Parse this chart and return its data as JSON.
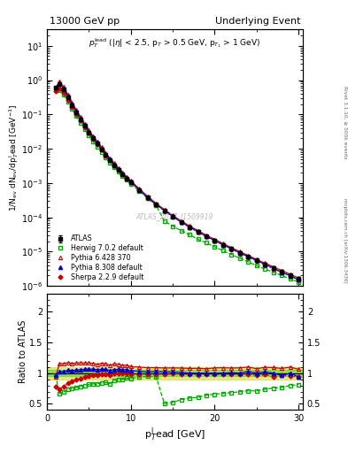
{
  "title_left": "13000 GeV pp",
  "title_right": "Underlying Event",
  "watermark": "ATLAS_2017_I1509919",
  "ylabel_ratio": "Ratio to ATLAS",
  "xlabel": "p$_T^{l}$ead [GeV]",
  "rivet_label": "Rivet 3.1.10, ≥ 500k events",
  "mcplots_label": "mcplots.cern.ch [arXiv:1306.3436]",
  "ylim_main": [
    1e-06,
    30
  ],
  "ylim_ratio": [
    0.4,
    2.3
  ],
  "xmin": 0,
  "xmax": 30.5,
  "band_inner_color": "#00cc00",
  "band_outer_color": "#cccc00",
  "band_inner_alpha": 0.35,
  "band_outer_alpha": 0.45,
  "band_inner": [
    0.95,
    1.05
  ],
  "band_outer": [
    0.9,
    1.1
  ],
  "atlas": {
    "x": [
      1.0,
      1.5,
      2.0,
      2.5,
      3.0,
      3.5,
      4.0,
      4.5,
      5.0,
      5.5,
      6.0,
      6.5,
      7.0,
      7.5,
      8.0,
      8.5,
      9.0,
      9.5,
      10.0,
      11.0,
      12.0,
      13.0,
      14.0,
      15.0,
      16.0,
      17.0,
      18.0,
      19.0,
      20.0,
      21.0,
      22.0,
      23.0,
      24.0,
      25.0,
      26.0,
      27.0,
      28.0,
      29.0,
      30.0
    ],
    "y": [
      0.62,
      0.78,
      0.55,
      0.32,
      0.19,
      0.115,
      0.072,
      0.046,
      0.03,
      0.02,
      0.014,
      0.0095,
      0.0065,
      0.0047,
      0.0033,
      0.0024,
      0.0018,
      0.00135,
      0.00105,
      0.00062,
      0.000375,
      0.000235,
      0.000155,
      0.000105,
      7.2e-05,
      5.2e-05,
      3.8e-05,
      2.8e-05,
      2.1e-05,
      1.58e-05,
      1.2e-05,
      9.2e-06,
      7e-06,
      5.5e-06,
      4.2e-06,
      3.3e-06,
      2.6e-06,
      2e-06,
      1.6e-06
    ],
    "yerr": [
      0.04,
      0.05,
      0.035,
      0.02,
      0.012,
      0.007,
      0.005,
      0.003,
      0.002,
      0.0014,
      0.001,
      0.0007,
      0.0005,
      0.00035,
      0.00025,
      0.00018,
      0.00013,
      0.0001,
      8e-05,
      5e-05,
      3e-05,
      2e-05,
      1.3e-05,
      9e-06,
      6e-06,
      5e-06,
      3.5e-06,
      2.7e-06,
      2e-06,
      1.6e-06,
      1.2e-06,
      9e-07,
      7e-07,
      6e-07,
      5e-07,
      4e-07,
      3.2e-07,
      2.5e-07,
      2e-07
    ],
    "color": "black",
    "label": "ATLAS"
  },
  "herwig": {
    "x": [
      1.0,
      1.5,
      2.0,
      2.5,
      3.0,
      3.5,
      4.0,
      4.5,
      5.0,
      5.5,
      6.0,
      6.5,
      7.0,
      7.5,
      8.0,
      8.5,
      9.0,
      9.5,
      10.0,
      11.0,
      12.0,
      13.0,
      14.0,
      15.0,
      16.0,
      17.0,
      18.0,
      19.0,
      20.0,
      21.0,
      22.0,
      23.0,
      24.0,
      25.0,
      26.0,
      27.0,
      28.0,
      29.0,
      30.0
    ],
    "y": [
      0.6,
      0.52,
      0.38,
      0.235,
      0.143,
      0.088,
      0.0565,
      0.0368,
      0.0245,
      0.0165,
      0.0116,
      0.008,
      0.0055,
      0.0039,
      0.0029,
      0.00215,
      0.00162,
      0.00124,
      0.00096,
      0.00058,
      0.000355,
      0.000222,
      7.8e-05,
      5.5e-05,
      4.1e-05,
      3.1e-05,
      2.3e-05,
      1.8e-05,
      1.38e-05,
      1.06e-05,
      8.2e-06,
      6.4e-06,
      5e-06,
      3.9e-06,
      3.1e-06,
      2.5e-06,
      2e-06,
      1.6e-06,
      1.3e-06
    ],
    "color": "#00aa00",
    "label": "Herwig 7.0.2 default"
  },
  "pythia6": {
    "x": [
      1.0,
      1.5,
      2.0,
      2.5,
      3.0,
      3.5,
      4.0,
      4.5,
      5.0,
      5.5,
      6.0,
      6.5,
      7.0,
      7.5,
      8.0,
      8.5,
      9.0,
      9.5,
      10.0,
      11.0,
      12.0,
      13.0,
      14.0,
      15.0,
      16.0,
      17.0,
      18.0,
      19.0,
      20.0,
      21.0,
      22.0,
      23.0,
      24.0,
      25.0,
      26.0,
      27.0,
      28.0,
      29.0,
      30.0
    ],
    "y": [
      0.58,
      0.9,
      0.635,
      0.375,
      0.22,
      0.134,
      0.0842,
      0.0535,
      0.035,
      0.0232,
      0.016,
      0.011,
      0.0075,
      0.0053,
      0.0038,
      0.00275,
      0.00203,
      0.00152,
      0.00116,
      0.000682,
      0.000408,
      0.000256,
      0.000168,
      0.000114,
      7.8e-05,
      5.6e-05,
      4.1e-05,
      3e-05,
      2.28e-05,
      1.72e-05,
      1.3e-05,
      1e-05,
      7.7e-06,
      5.9e-06,
      4.6e-06,
      3.6e-06,
      2.8e-06,
      2.2e-06,
      1.7e-06
    ],
    "color": "#cc0000",
    "label": "Pythia 6.428 370"
  },
  "pythia8": {
    "x": [
      1.0,
      1.5,
      2.0,
      2.5,
      3.0,
      3.5,
      4.0,
      4.5,
      5.0,
      5.5,
      6.0,
      6.5,
      7.0,
      7.5,
      8.0,
      8.5,
      9.0,
      9.5,
      10.0,
      11.0,
      12.0,
      13.0,
      14.0,
      15.0,
      16.0,
      17.0,
      18.0,
      19.0,
      20.0,
      21.0,
      22.0,
      23.0,
      24.0,
      25.0,
      26.0,
      27.0,
      28.0,
      29.0,
      30.0
    ],
    "y": [
      0.6,
      0.8,
      0.565,
      0.335,
      0.198,
      0.121,
      0.076,
      0.049,
      0.032,
      0.0213,
      0.0148,
      0.0101,
      0.0069,
      0.0049,
      0.0035,
      0.00255,
      0.0019,
      0.00143,
      0.00109,
      0.00064,
      0.000382,
      0.000241,
      0.000158,
      0.000107,
      7.3e-05,
      5.2e-05,
      3.8e-05,
      2.8e-05,
      2.1e-05,
      1.58e-05,
      1.21e-05,
      9.2e-06,
      7.2e-06,
      5.5e-06,
      4.3e-06,
      3.3e-06,
      2.5e-06,
      2e-06,
      1.5e-06
    ],
    "color": "#0000cc",
    "label": "Pythia 8.308 default"
  },
  "sherpa": {
    "x": [
      1.0,
      1.5,
      2.0,
      2.5,
      3.0,
      3.5,
      4.0,
      4.5,
      5.0,
      5.5,
      6.0,
      6.5,
      7.0,
      7.5,
      8.0,
      8.5,
      9.0,
      9.5,
      10.0,
      11.0,
      12.0,
      13.0,
      14.0,
      15.0,
      16.0,
      17.0,
      18.0,
      19.0,
      20.0,
      21.0,
      22.0,
      23.0,
      24.0,
      25.0,
      26.0,
      27.0,
      28.0,
      29.0,
      30.0
    ],
    "y": [
      0.48,
      0.58,
      0.43,
      0.27,
      0.165,
      0.103,
      0.066,
      0.043,
      0.0288,
      0.0193,
      0.0135,
      0.0093,
      0.0064,
      0.00455,
      0.00328,
      0.0024,
      0.00179,
      0.00135,
      0.00103,
      0.000611,
      0.000368,
      0.000232,
      0.000152,
      0.000104,
      7.1e-05,
      5.1e-05,
      3.7e-05,
      2.75e-05,
      2.05e-05,
      1.55e-05,
      1.18e-05,
      9e-06,
      6.9e-06,
      5.3e-06,
      4.1e-06,
      3.1e-06,
      2.5e-06,
      1.9e-06,
      1.5e-06
    ],
    "color": "#cc0000",
    "label": "Sherpa 2.2.9 default"
  }
}
